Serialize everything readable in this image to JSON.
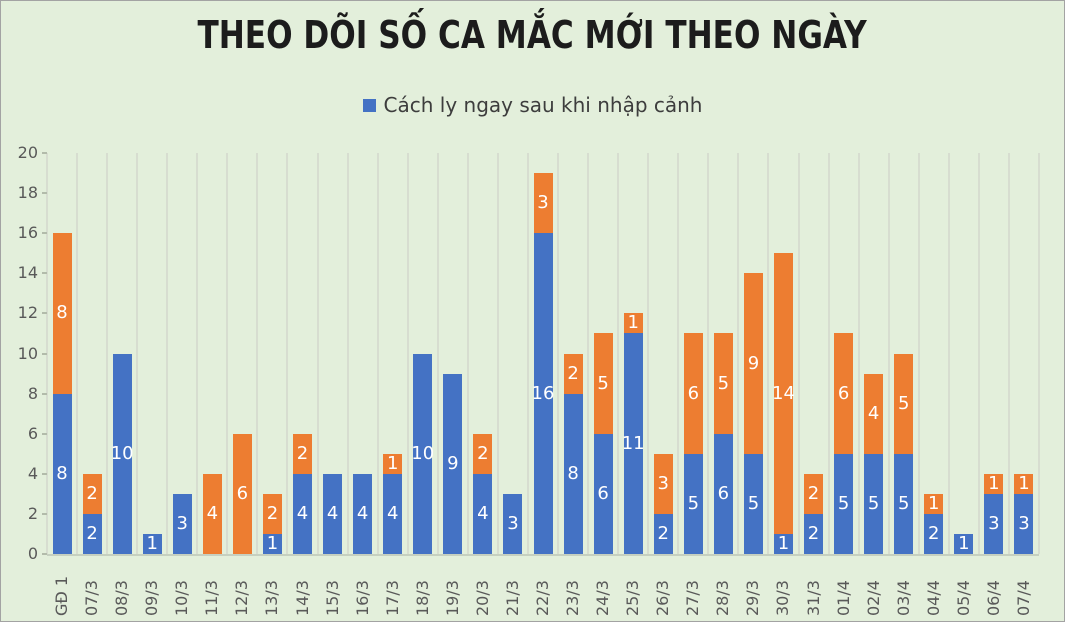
{
  "chart_data": {
    "type": "bar",
    "stacked": true,
    "title": "THEO DÕI SỐ CA MẮC MỚI THEO NGÀY",
    "legend": {
      "position": "top",
      "entries": [
        {
          "label": "Cách ly ngay sau khi nhập cảnh",
          "color": "#4472c4"
        }
      ]
    },
    "categories": [
      "GĐ 1",
      "07/3",
      "08/3",
      "09/3",
      "10/3",
      "11/3",
      "12/3",
      "13/3",
      "14/3",
      "15/3",
      "16/3",
      "17/3",
      "18/3",
      "19/3",
      "20/3",
      "21/3",
      "22/3",
      "23/3",
      "24/3",
      "25/3",
      "26/3",
      "27/3",
      "28/3",
      "29/3",
      "30/3",
      "31/3",
      "01/4",
      "02/4",
      "03/4",
      "04/4",
      "05/4",
      "06/4",
      "07/4"
    ],
    "series": [
      {
        "name": "Cách ly ngay sau khi nhập cảnh",
        "color": "#4472c4",
        "values": [
          8,
          2,
          10,
          1,
          3,
          0,
          0,
          1,
          4,
          4,
          4,
          4,
          10,
          9,
          4,
          3,
          16,
          8,
          6,
          11,
          2,
          5,
          6,
          5,
          1,
          2,
          5,
          5,
          5,
          2,
          1,
          3,
          3
        ]
      },
      {
        "name": "",
        "color": "#ed7d31",
        "values": [
          8,
          2,
          0,
          0,
          0,
          4,
          6,
          2,
          2,
          0,
          0,
          1,
          0,
          0,
          2,
          0,
          3,
          2,
          5,
          1,
          3,
          6,
          5,
          9,
          14,
          2,
          6,
          4,
          5,
          1,
          0,
          1,
          1
        ]
      }
    ],
    "ylim": [
      0,
      20
    ],
    "ytick_step": 2,
    "yticks": [
      0,
      2,
      4,
      6,
      8,
      10,
      12,
      14,
      16,
      18,
      20
    ],
    "grid": "vertical-only",
    "data_labels": {
      "color": "#ffffff",
      "hide_zero": true
    },
    "colors": {
      "background": "#e3efdb",
      "gridline": "#d7ddd0",
      "axis_text": "#595959",
      "title_text": "#1c1c1c"
    }
  }
}
